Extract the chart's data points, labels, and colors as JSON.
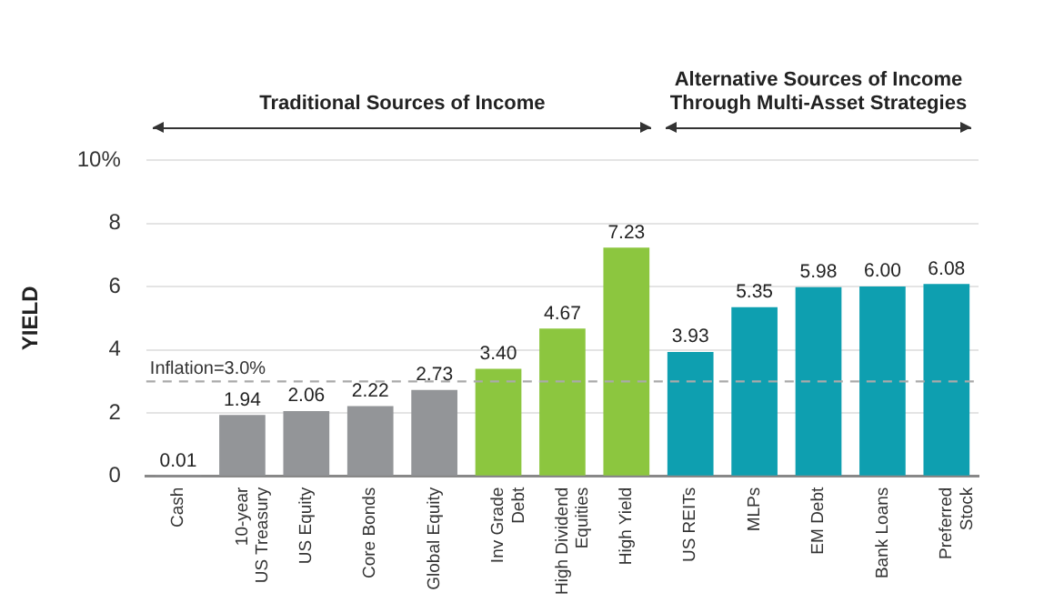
{
  "chart_data": {
    "type": "bar",
    "ylabel": "YIELD",
    "categories": [
      "Cash",
      "10-year\nUS Treasury",
      "US Equity",
      "Core Bonds",
      "Global Equity",
      "Inv Grade\nDebt",
      "High Dividend\nEquities",
      "High Yield",
      "US REITs",
      "MLPs",
      "EM Debt",
      "Bank Loans",
      "Preferred\nStock"
    ],
    "values": [
      0.01,
      1.94,
      2.06,
      2.22,
      2.73,
      3.4,
      4.67,
      7.23,
      3.93,
      5.35,
      5.98,
      6.0,
      6.08
    ],
    "colors": [
      "#939598",
      "#939598",
      "#939598",
      "#939598",
      "#939598",
      "#8cc63f",
      "#8cc63f",
      "#8cc63f",
      "#0e9fb0",
      "#0e9fb0",
      "#0e9fb0",
      "#0e9fb0",
      "#0e9fb0"
    ],
    "ylim": [
      0,
      10
    ],
    "value_labels": [
      "0.01",
      "1.94",
      "2.06",
      "2.22",
      "2.73",
      "3.40",
      "4.67",
      "7.23",
      "3.93",
      "5.35",
      "5.98",
      "6.00",
      "6.08"
    ],
    "yticks": [
      0,
      2,
      4,
      6,
      8,
      {
        "value": 10,
        "label": "10%"
      }
    ],
    "grid": "y",
    "legend": false,
    "ref_lines": [
      {
        "axis": "y",
        "value": 3,
        "label": "Inflation=3.0%",
        "color": "#aaaaaa",
        "line_style": "dashed"
      }
    ],
    "annotations": [
      "Traditional Sources of Income",
      "Alternative Sources of Income\nThrough Multi-Asset Strategies"
    ]
  }
}
